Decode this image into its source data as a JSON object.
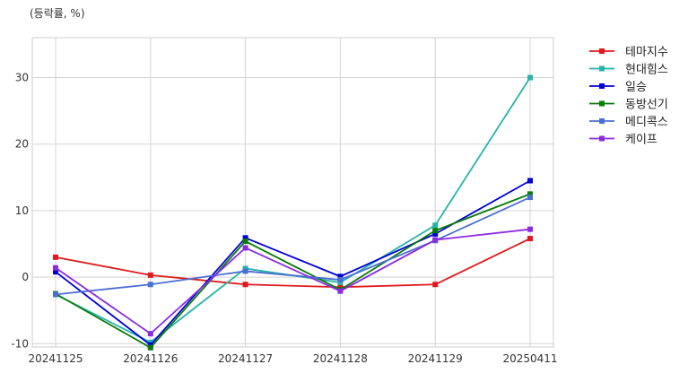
{
  "chart_data": {
    "type": "line",
    "unit_label": "(등락률, %)",
    "categories": [
      "20241125",
      "20241126",
      "20241127",
      "20241128",
      "20241129",
      "20250411"
    ],
    "ylim": [
      -10.5,
      36
    ],
    "yticks": [
      -10,
      0,
      10,
      20,
      30
    ],
    "grid": true,
    "legend_position": "right-outside-top",
    "series": [
      {
        "name": "테마지수",
        "color": "#e0191c",
        "values": [
          3.0,
          0.3,
          -1.1,
          -1.5,
          -1.1,
          5.8
        ]
      },
      {
        "name": "현대힘스",
        "color": "#26b3aa",
        "values": [
          -2.6,
          -9.8,
          1.3,
          -0.8,
          7.8,
          30.0
        ]
      },
      {
        "name": "일승",
        "color": "#0000d8",
        "values": [
          0.8,
          -10.2,
          5.9,
          0.1,
          6.5,
          14.5
        ]
      },
      {
        "name": "동방선기",
        "color": "#0a7a0a",
        "values": [
          -2.5,
          -10.6,
          5.4,
          -1.9,
          7.0,
          12.5
        ]
      },
      {
        "name": "메디콕스",
        "color": "#4a6fd0",
        "values": [
          -2.6,
          -1.1,
          0.9,
          -0.4,
          5.5,
          12.0
        ]
      },
      {
        "name": "케이프",
        "color": "#8a2be2",
        "values": [
          1.4,
          -8.5,
          4.4,
          -2.1,
          5.6,
          7.2
        ]
      }
    ]
  }
}
